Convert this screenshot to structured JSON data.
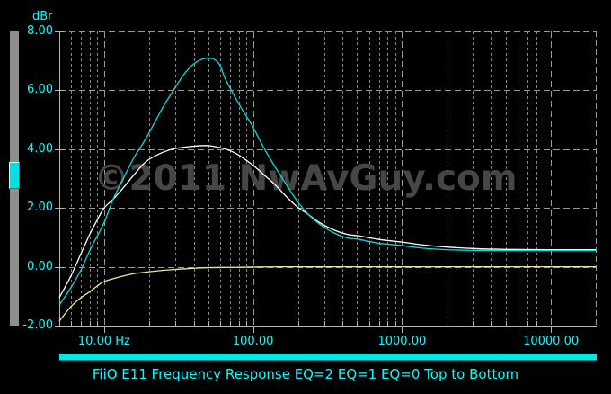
{
  "window": {
    "background": "#000000"
  },
  "watermark": {
    "text": "©2011 NwAvGuy.com",
    "color": "#464646"
  },
  "footer": {
    "title": "FiiO E11 Frequency Response EQ=2 EQ=1 EQ=0 Top to Bottom"
  },
  "scrollbars": {
    "vertical": {
      "track_color": "#8e8e8e",
      "thumb_color": "#00e2e2"
    },
    "horizontal": {
      "bar_color": "#00e8e8"
    }
  },
  "colors": {
    "axis_text": "#00ffff",
    "grid_minor": "#858585",
    "grid_major": "#9a9a9a",
    "axis_line": "#b5b5b5"
  },
  "chart_data": {
    "type": "line",
    "title": "FiiO E11 Frequency Response EQ=2 EQ=1 EQ=0 Top to Bottom",
    "x_axis": {
      "scale": "log",
      "min_hz": 5,
      "max_hz": 20000,
      "major_ticks": [
        {
          "hz": 10,
          "label": "10.00 Hz"
        },
        {
          "hz": 100,
          "label": "100.00"
        },
        {
          "hz": 1000,
          "label": "1000.00"
        },
        {
          "hz": 10000,
          "label": "10000.00"
        }
      ],
      "minor_ticks": [
        6,
        7,
        8,
        9,
        20,
        30,
        40,
        50,
        60,
        70,
        80,
        90,
        200,
        300,
        400,
        500,
        600,
        700,
        800,
        900,
        2000,
        3000,
        4000,
        5000,
        6000,
        7000,
        8000,
        9000
      ]
    },
    "y_axis": {
      "unit_label": "dBr",
      "min": -2,
      "max": 8,
      "ticks": [
        {
          "value": 8,
          "label": "8.00"
        },
        {
          "value": 6,
          "label": "6.00"
        },
        {
          "value": 4,
          "label": "4.00"
        },
        {
          "value": 2,
          "label": "2.00"
        },
        {
          "value": 0,
          "label": "0.00"
        },
        {
          "value": -2,
          "label": "-2.00"
        }
      ]
    },
    "grid": true,
    "legend_position": "none",
    "series": [
      {
        "name": "EQ=2",
        "color": "#00dede",
        "points": [
          [
            5,
            -1.3
          ],
          [
            6,
            -0.7
          ],
          [
            7,
            -0.1
          ],
          [
            8,
            0.55
          ],
          [
            9,
            1.05
          ],
          [
            10,
            1.5
          ],
          [
            11.5,
            2.3
          ],
          [
            13,
            2.85
          ],
          [
            16,
            3.75
          ],
          [
            18,
            4.15
          ],
          [
            20,
            4.55
          ],
          [
            25,
            5.45
          ],
          [
            30,
            6.1
          ],
          [
            35,
            6.6
          ],
          [
            40,
            6.9
          ],
          [
            45,
            7.05
          ],
          [
            50,
            7.1
          ],
          [
            55,
            7.05
          ],
          [
            60,
            6.85
          ],
          [
            65,
            6.4
          ],
          [
            77,
            5.7
          ],
          [
            88,
            5.2
          ],
          [
            100,
            4.75
          ],
          [
            115,
            4.15
          ],
          [
            134,
            3.57
          ],
          [
            160,
            2.95
          ],
          [
            200,
            2.2
          ],
          [
            235,
            1.78
          ],
          [
            280,
            1.45
          ],
          [
            350,
            1.15
          ],
          [
            430,
            0.98
          ],
          [
            515,
            0.93
          ],
          [
            700,
            0.8
          ],
          [
            1000,
            0.72
          ],
          [
            1400,
            0.63
          ],
          [
            2000,
            0.58
          ],
          [
            3000,
            0.56
          ],
          [
            5000,
            0.55
          ],
          [
            10000,
            0.55
          ],
          [
            20000,
            0.55
          ]
        ]
      },
      {
        "name": "EQ=1",
        "color": "#ffffff",
        "points": [
          [
            5,
            -1.05
          ],
          [
            6,
            -0.3
          ],
          [
            7,
            0.45
          ],
          [
            8,
            1.1
          ],
          [
            9,
            1.6
          ],
          [
            10,
            2.0
          ],
          [
            11.5,
            2.3
          ],
          [
            13,
            2.6
          ],
          [
            16,
            3.15
          ],
          [
            18,
            3.45
          ],
          [
            20,
            3.65
          ],
          [
            25,
            3.9
          ],
          [
            30,
            4.02
          ],
          [
            40,
            4.1
          ],
          [
            50,
            4.12
          ],
          [
            60,
            4.05
          ],
          [
            70,
            3.95
          ],
          [
            80,
            3.8
          ],
          [
            100,
            3.45
          ],
          [
            120,
            3.1
          ],
          [
            140,
            2.8
          ],
          [
            170,
            2.35
          ],
          [
            200,
            2.02
          ],
          [
            235,
            1.78
          ],
          [
            280,
            1.5
          ],
          [
            350,
            1.25
          ],
          [
            430,
            1.1
          ],
          [
            515,
            1.05
          ],
          [
            700,
            0.93
          ],
          [
            1000,
            0.84
          ],
          [
            1400,
            0.74
          ],
          [
            2000,
            0.67
          ],
          [
            3000,
            0.62
          ],
          [
            5000,
            0.59
          ],
          [
            10000,
            0.58
          ],
          [
            20000,
            0.58
          ]
        ]
      },
      {
        "name": "EQ=0",
        "color": "#e9e99c",
        "points": [
          [
            5,
            -1.85
          ],
          [
            6,
            -1.35
          ],
          [
            7,
            -1.05
          ],
          [
            8,
            -0.85
          ],
          [
            9,
            -0.65
          ],
          [
            10,
            -0.5
          ],
          [
            12,
            -0.38
          ],
          [
            14,
            -0.29
          ],
          [
            16,
            -0.23
          ],
          [
            20,
            -0.17
          ],
          [
            25,
            -0.12
          ],
          [
            30,
            -0.09
          ],
          [
            40,
            -0.05
          ],
          [
            50,
            -0.03
          ],
          [
            70,
            -0.02
          ],
          [
            100,
            -0.01
          ],
          [
            150,
            0
          ],
          [
            300,
            0
          ],
          [
            1000,
            0
          ],
          [
            5000,
            0
          ],
          [
            20000,
            0
          ]
        ]
      }
    ],
    "annotation": "Top to Bottom order: EQ=2, EQ=1, EQ=0"
  }
}
